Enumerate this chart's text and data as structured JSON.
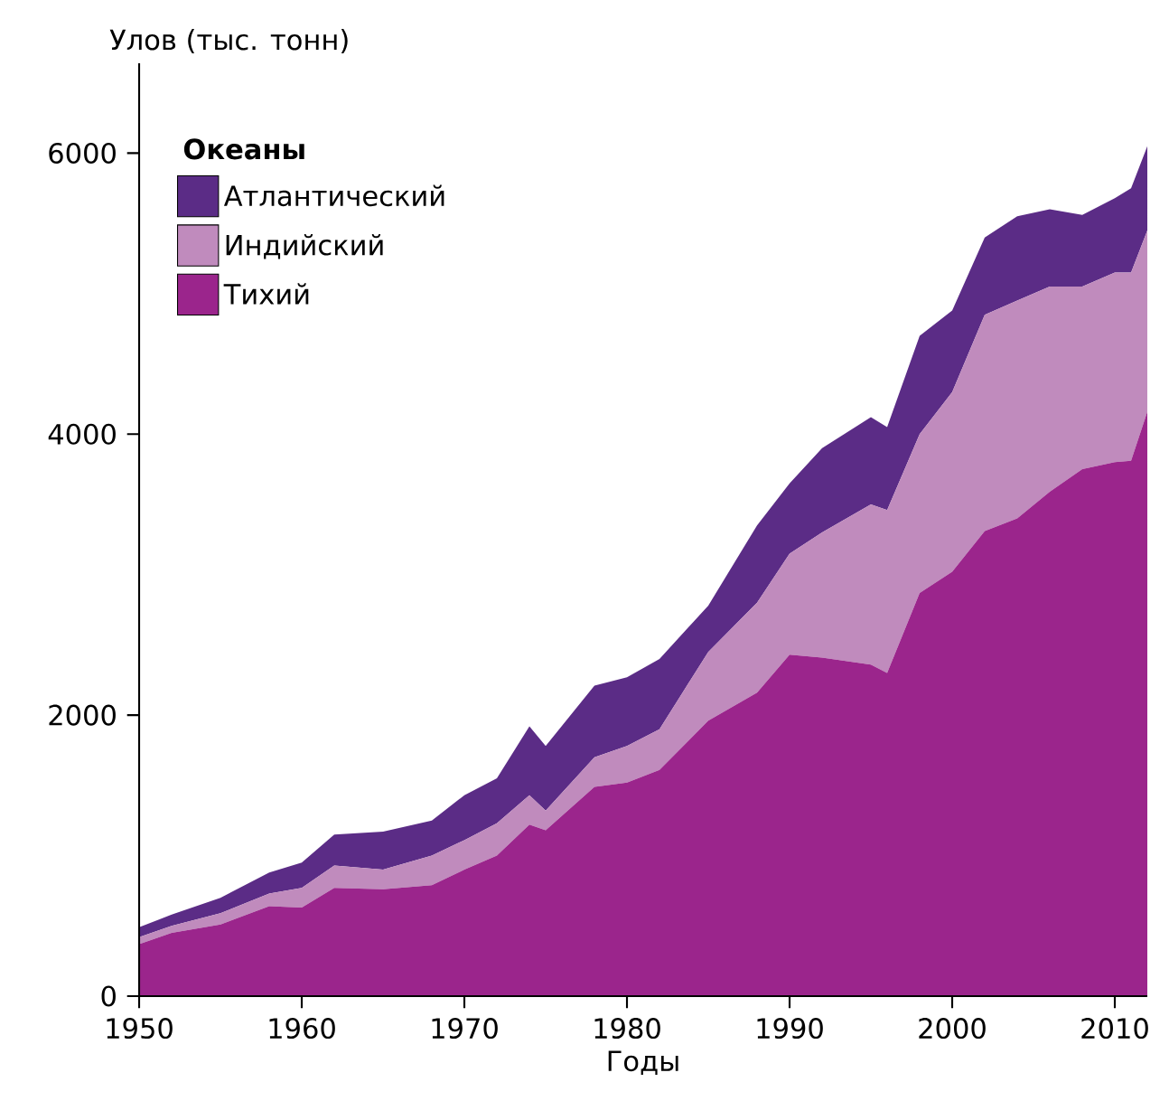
{
  "chart_data": {
    "type": "area",
    "stacked": true,
    "xlabel": "Годы",
    "ylabel": "Улов (тыс. тонн)",
    "legend_title": "Океаны",
    "legend": "top left",
    "grid": false,
    "x": [
      1950,
      1952,
      1955,
      1958,
      1960,
      1962,
      1965,
      1968,
      1970,
      1972,
      1974,
      1975,
      1978,
      1980,
      1982,
      1985,
      1988,
      1990,
      1992,
      1995,
      1996,
      1998,
      2000,
      2002,
      2004,
      2006,
      2008,
      2010,
      2011,
      2012
    ],
    "xlim": [
      1950,
      2012
    ],
    "xticks": [
      1950,
      1960,
      1970,
      1980,
      1990,
      2000,
      2010
    ],
    "ylim": [
      0,
      6640
    ],
    "yticks": [
      0,
      2000,
      4000,
      6000
    ],
    "series": [
      {
        "name": "Тихий",
        "color": "#9b258c",
        "values": [
          370,
          450,
          510,
          640,
          630,
          770,
          760,
          790,
          900,
          1000,
          1220,
          1180,
          1490,
          1520,
          1610,
          1960,
          2160,
          2430,
          2410,
          2360,
          2300,
          2870,
          3020,
          3310,
          3400,
          3590,
          3750,
          3800,
          3810,
          4160
        ]
      },
      {
        "name": "Индийский",
        "color": "#c08bbd",
        "values": [
          50,
          50,
          80,
          90,
          140,
          160,
          140,
          210,
          210,
          230,
          210,
          140,
          210,
          260,
          290,
          490,
          640,
          720,
          890,
          1140,
          1160,
          1130,
          1280,
          1540,
          1550,
          1460,
          1300,
          1350,
          1340,
          1290
        ]
      },
      {
        "name": "Атлантический",
        "color": "#5b2c86",
        "values": [
          70,
          80,
          110,
          150,
          180,
          220,
          270,
          250,
          320,
          320,
          490,
          460,
          510,
          490,
          500,
          330,
          550,
          500,
          600,
          620,
          590,
          700,
          580,
          550,
          600,
          550,
          510,
          530,
          600,
          600
        ]
      }
    ]
  }
}
